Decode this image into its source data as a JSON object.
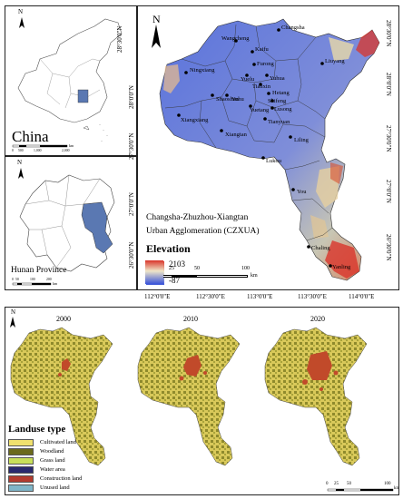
{
  "china_panel": {
    "north": "N",
    "label": "China",
    "scale": [
      "0",
      "500",
      "1,000",
      "2,000"
    ],
    "scale_unit": "km"
  },
  "hunan_panel": {
    "north": "N",
    "label": "Hunan Province",
    "scale": [
      "0",
      "50",
      "100",
      "200"
    ],
    "scale_unit": "km"
  },
  "main_map": {
    "north": "N",
    "title_line1": "Changsha-Zhuzhou-Xiangtan",
    "title_line2": "Urban Agglomeration (CZXUA)",
    "elevation_title": "Elevation",
    "elevation_max": "2103",
    "elevation_min": "-87",
    "scale": [
      "0",
      "25",
      "50",
      "100"
    ],
    "scale_unit": "km",
    "lat_labels": [
      "28°30'0\"N",
      "28°0'0\"N",
      "27°30'0\"N",
      "27°0'0\"N",
      "26°30'0\"N"
    ],
    "lon_labels": [
      "112°0'0\"E",
      "112°30'0\"E",
      "113°0'0\"E",
      "113°30'0\"E",
      "114°0'0\"E"
    ],
    "cities": [
      "Changsha",
      "Wangcheng",
      "Kaifu",
      "Furong",
      "Liuyang",
      "Ningxiang",
      "Yuelu",
      "Tianxin",
      "Yuhua",
      "Shaoshan",
      "Yuhu",
      "Hetang",
      "Shifeng",
      "Lusong",
      "Xiangxiang",
      "Yuetang",
      "Tianyuan",
      "Xiangtan",
      "Liling",
      "Lukou",
      "You",
      "Chaling",
      "Yanling"
    ]
  },
  "landuse_panel": {
    "north": "N",
    "years": [
      "2000",
      "2010",
      "2020"
    ],
    "legend_title": "Landuse type",
    "classes": [
      {
        "label": "Cultivated land",
        "color": "#f0e16e"
      },
      {
        "label": "Woodland",
        "color": "#6b6a1c"
      },
      {
        "label": "Grass land",
        "color": "#c8e05a"
      },
      {
        "label": "Water area",
        "color": "#28296e"
      },
      {
        "label": "Construction land",
        "color": "#b23a2e"
      },
      {
        "label": "Unused land",
        "color": "#7fb5c8"
      }
    ],
    "scale": [
      "0",
      "25",
      "50",
      "100"
    ],
    "scale_unit": "km"
  },
  "colors": {
    "elev_low": "#3b55d9",
    "elev_mid": "#d8d4c2",
    "elev_high": "#d9352a",
    "hunan_fill": "#5a78b2"
  }
}
